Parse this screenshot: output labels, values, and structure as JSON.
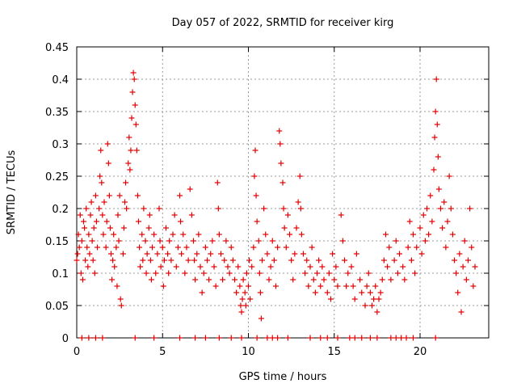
{
  "chart_data": {
    "type": "scatter",
    "title": "Day 057 of 2022, SRMTID for receiver kirg",
    "xlabel": "GPS time / hours",
    "ylabel": "SRMTID / TECUs",
    "xlim": [
      0,
      24
    ],
    "ylim": [
      0,
      0.45
    ],
    "x_ticks": [
      0,
      5,
      10,
      15,
      20
    ],
    "x_tick_labels": [
      "0",
      "5",
      "10",
      "15",
      "20"
    ],
    "y_ticks": [
      0,
      0.05,
      0.1,
      0.15,
      0.2,
      0.25,
      0.3,
      0.35,
      0.4,
      0.45
    ],
    "y_tick_labels": [
      "0",
      "0.05",
      "0.1",
      "0.15",
      "0.2",
      "0.25",
      "0.3",
      "0.35",
      "0.4",
      "0.45"
    ],
    "grid": true,
    "marker": "+",
    "color": "#e00000",
    "series": [
      {
        "name": "SRMTID",
        "points": [
          [
            0.0,
            0.12
          ],
          [
            0.05,
            0.13
          ],
          [
            0.1,
            0.16
          ],
          [
            0.15,
            0.14
          ],
          [
            0.2,
            0.19
          ],
          [
            0.25,
            0.1
          ],
          [
            0.3,
            0.15
          ],
          [
            0.35,
            0.09
          ],
          [
            0.4,
            0.18
          ],
          [
            0.45,
            0.17
          ],
          [
            0.5,
            0.12
          ],
          [
            0.55,
            0.2
          ],
          [
            0.6,
            0.14
          ],
          [
            0.65,
            0.11
          ],
          [
            0.7,
            0.16
          ],
          [
            0.75,
            0.13
          ],
          [
            0.8,
            0.19
          ],
          [
            0.85,
            0.21
          ],
          [
            0.9,
            0.15
          ],
          [
            0.95,
            0.12
          ],
          [
            1.0,
            0.17
          ],
          [
            1.05,
            0.1
          ],
          [
            1.1,
            0.22
          ],
          [
            1.15,
            0.18
          ],
          [
            1.2,
            0.14
          ],
          [
            1.3,
            0.2
          ],
          [
            1.35,
            0.25
          ],
          [
            1.4,
            0.29
          ],
          [
            1.45,
            0.24
          ],
          [
            1.5,
            0.19
          ],
          [
            1.55,
            0.16
          ],
          [
            1.6,
            0.21
          ],
          [
            1.7,
            0.14
          ],
          [
            1.75,
            0.18
          ],
          [
            1.8,
            0.3
          ],
          [
            1.85,
            0.27
          ],
          [
            1.9,
            0.22
          ],
          [
            1.95,
            0.17
          ],
          [
            2.0,
            0.13
          ],
          [
            2.05,
            0.09
          ],
          [
            2.1,
            0.12
          ],
          [
            2.15,
            0.16
          ],
          [
            2.2,
            0.11
          ],
          [
            2.3,
            0.14
          ],
          [
            2.35,
            0.08
          ],
          [
            2.4,
            0.19
          ],
          [
            2.45,
            0.15
          ],
          [
            2.5,
            0.22
          ],
          [
            2.55,
            0.06
          ],
          [
            2.6,
            0.05
          ],
          [
            2.7,
            0.13
          ],
          [
            2.75,
            0.17
          ],
          [
            2.8,
            0.21
          ],
          [
            2.85,
            0.24
          ],
          [
            2.9,
            0.2
          ],
          [
            3.0,
            0.27
          ],
          [
            3.05,
            0.31
          ],
          [
            3.1,
            0.26
          ],
          [
            3.15,
            0.29
          ],
          [
            3.2,
            0.34
          ],
          [
            3.25,
            0.38
          ],
          [
            3.3,
            0.41
          ],
          [
            3.35,
            0.4
          ],
          [
            3.4,
            0.36
          ],
          [
            3.45,
            0.33
          ],
          [
            3.5,
            0.29
          ],
          [
            3.55,
            0.22
          ],
          [
            3.6,
            0.18
          ],
          [
            3.65,
            0.14
          ],
          [
            3.7,
            0.11
          ],
          [
            3.8,
            0.16
          ],
          [
            3.85,
            0.12
          ],
          [
            3.9,
            0.2
          ],
          [
            4.0,
            0.15
          ],
          [
            4.05,
            0.1
          ],
          [
            4.1,
            0.13
          ],
          [
            4.2,
            0.17
          ],
          [
            4.25,
            0.19
          ],
          [
            4.3,
            0.12
          ],
          [
            4.35,
            0.09
          ],
          [
            4.4,
            0.14
          ],
          [
            4.5,
            0.16
          ],
          [
            4.6,
            0.1
          ],
          [
            4.7,
            0.13
          ],
          [
            4.8,
            0.2
          ],
          [
            4.85,
            0.15
          ],
          [
            4.9,
            0.11
          ],
          [
            5.0,
            0.14
          ],
          [
            5.05,
            0.08
          ],
          [
            5.1,
            0.12
          ],
          [
            5.2,
            0.17
          ],
          [
            5.3,
            0.13
          ],
          [
            5.35,
            0.1
          ],
          [
            5.4,
            0.15
          ],
          [
            5.5,
            0.12
          ],
          [
            5.6,
            0.16
          ],
          [
            5.7,
            0.19
          ],
          [
            5.8,
            0.11
          ],
          [
            5.9,
            0.14
          ],
          [
            6.0,
            0.22
          ],
          [
            6.05,
            0.18
          ],
          [
            6.1,
            0.13
          ],
          [
            6.2,
            0.16
          ],
          [
            6.3,
            0.1
          ],
          [
            6.4,
            0.14
          ],
          [
            6.5,
            0.12
          ],
          [
            6.6,
            0.23
          ],
          [
            6.7,
            0.19
          ],
          [
            6.8,
            0.15
          ],
          [
            6.85,
            0.12
          ],
          [
            6.9,
            0.09
          ],
          [
            7.0,
            0.13
          ],
          [
            7.1,
            0.16
          ],
          [
            7.2,
            0.11
          ],
          [
            7.3,
            0.07
          ],
          [
            7.4,
            0.1
          ],
          [
            7.5,
            0.14
          ],
          [
            7.6,
            0.12
          ],
          [
            7.7,
            0.09
          ],
          [
            7.8,
            0.13
          ],
          [
            7.9,
            0.15
          ],
          [
            8.0,
            0.11
          ],
          [
            8.1,
            0.08
          ],
          [
            8.2,
            0.24
          ],
          [
            8.25,
            0.2
          ],
          [
            8.3,
            0.16
          ],
          [
            8.4,
            0.13
          ],
          [
            8.5,
            0.09
          ],
          [
            8.6,
            0.12
          ],
          [
            8.7,
            0.15
          ],
          [
            8.8,
            0.11
          ],
          [
            8.9,
            0.1
          ],
          [
            9.0,
            0.14
          ],
          [
            9.1,
            0.12
          ],
          [
            9.2,
            0.09
          ],
          [
            9.3,
            0.07
          ],
          [
            9.4,
            0.11
          ],
          [
            9.5,
            0.08
          ],
          [
            9.55,
            0.05
          ],
          [
            9.6,
            0.04
          ],
          [
            9.65,
            0.06
          ],
          [
            9.7,
            0.09
          ],
          [
            9.8,
            0.07
          ],
          [
            9.85,
            0.05
          ],
          [
            9.9,
            0.1
          ],
          [
            10.0,
            0.08
          ],
          [
            10.05,
            0.12
          ],
          [
            10.1,
            0.06
          ],
          [
            10.2,
            0.11
          ],
          [
            10.3,
            0.14
          ],
          [
            10.35,
            0.25
          ],
          [
            10.4,
            0.29
          ],
          [
            10.45,
            0.22
          ],
          [
            10.5,
            0.18
          ],
          [
            10.6,
            0.15
          ],
          [
            10.65,
            0.1
          ],
          [
            10.7,
            0.07
          ],
          [
            10.75,
            0.03
          ],
          [
            10.8,
            0.12
          ],
          [
            10.9,
            0.2
          ],
          [
            11.0,
            0.16
          ],
          [
            11.1,
            0.13
          ],
          [
            11.2,
            0.09
          ],
          [
            11.3,
            0.11
          ],
          [
            11.4,
            0.15
          ],
          [
            11.5,
            0.12
          ],
          [
            11.6,
            0.08
          ],
          [
            11.7,
            0.14
          ],
          [
            11.8,
            0.32
          ],
          [
            11.85,
            0.3
          ],
          [
            11.9,
            0.27
          ],
          [
            12.0,
            0.24
          ],
          [
            12.05,
            0.2
          ],
          [
            12.1,
            0.17
          ],
          [
            12.2,
            0.14
          ],
          [
            12.3,
            0.19
          ],
          [
            12.4,
            0.16
          ],
          [
            12.5,
            0.12
          ],
          [
            12.6,
            0.09
          ],
          [
            12.7,
            0.13
          ],
          [
            12.8,
            0.17
          ],
          [
            12.9,
            0.21
          ],
          [
            13.0,
            0.25
          ],
          [
            13.05,
            0.2
          ],
          [
            13.1,
            0.16
          ],
          [
            13.2,
            0.13
          ],
          [
            13.3,
            0.1
          ],
          [
            13.4,
            0.12
          ],
          [
            13.5,
            0.08
          ],
          [
            13.6,
            0.11
          ],
          [
            13.7,
            0.14
          ],
          [
            13.8,
            0.09
          ],
          [
            13.9,
            0.07
          ],
          [
            14.0,
            0.1
          ],
          [
            14.1,
            0.12
          ],
          [
            14.2,
            0.08
          ],
          [
            14.3,
            0.11
          ],
          [
            14.4,
            0.09
          ],
          [
            14.6,
            0.07
          ],
          [
            14.7,
            0.1
          ],
          [
            14.8,
            0.06
          ],
          [
            14.9,
            0.13
          ],
          [
            15.0,
            0.09
          ],
          [
            15.1,
            0.11
          ],
          [
            15.2,
            0.08
          ],
          [
            15.4,
            0.19
          ],
          [
            15.5,
            0.15
          ],
          [
            15.6,
            0.12
          ],
          [
            15.7,
            0.08
          ],
          [
            15.8,
            0.1
          ],
          [
            16.0,
            0.11
          ],
          [
            16.1,
            0.08
          ],
          [
            16.2,
            0.06
          ],
          [
            16.3,
            0.13
          ],
          [
            16.5,
            0.09
          ],
          [
            16.6,
            0.07
          ],
          [
            16.8,
            0.05
          ],
          [
            16.9,
            0.08
          ],
          [
            17.0,
            0.1
          ],
          [
            17.1,
            0.07
          ],
          [
            17.2,
            0.05
          ],
          [
            17.3,
            0.06
          ],
          [
            17.4,
            0.08
          ],
          [
            17.5,
            0.04
          ],
          [
            17.6,
            0.06
          ],
          [
            17.7,
            0.07
          ],
          [
            17.8,
            0.09
          ],
          [
            17.9,
            0.12
          ],
          [
            18.0,
            0.16
          ],
          [
            18.1,
            0.11
          ],
          [
            18.2,
            0.14
          ],
          [
            18.3,
            0.09
          ],
          [
            18.5,
            0.12
          ],
          [
            18.6,
            0.15
          ],
          [
            18.7,
            0.1
          ],
          [
            18.8,
            0.13
          ],
          [
            19.0,
            0.11
          ],
          [
            19.1,
            0.09
          ],
          [
            19.3,
            0.14
          ],
          [
            19.4,
            0.18
          ],
          [
            19.5,
            0.12
          ],
          [
            19.6,
            0.16
          ],
          [
            19.7,
            0.1
          ],
          [
            19.8,
            0.14
          ],
          [
            20.0,
            0.17
          ],
          [
            20.1,
            0.13
          ],
          [
            20.2,
            0.19
          ],
          [
            20.3,
            0.15
          ],
          [
            20.4,
            0.2
          ],
          [
            20.5,
            0.16
          ],
          [
            20.6,
            0.22
          ],
          [
            20.7,
            0.18
          ],
          [
            20.8,
            0.26
          ],
          [
            20.85,
            0.31
          ],
          [
            20.9,
            0.35
          ],
          [
            20.95,
            0.4
          ],
          [
            21.0,
            0.33
          ],
          [
            21.05,
            0.28
          ],
          [
            21.1,
            0.23
          ],
          [
            21.2,
            0.2
          ],
          [
            21.3,
            0.17
          ],
          [
            21.4,
            0.21
          ],
          [
            21.5,
            0.14
          ],
          [
            21.6,
            0.18
          ],
          [
            21.7,
            0.25
          ],
          [
            21.8,
            0.2
          ],
          [
            21.9,
            0.16
          ],
          [
            22.0,
            0.12
          ],
          [
            22.1,
            0.1
          ],
          [
            22.2,
            0.07
          ],
          [
            22.3,
            0.13
          ],
          [
            22.4,
            0.04
          ],
          [
            22.5,
            0.11
          ],
          [
            22.6,
            0.15
          ],
          [
            22.7,
            0.09
          ],
          [
            22.8,
            0.12
          ],
          [
            22.9,
            0.2
          ],
          [
            23.0,
            0.14
          ],
          [
            23.1,
            0.08
          ],
          [
            23.2,
            0.11
          ],
          [
            0.3,
            0.0
          ],
          [
            0.7,
            0.0
          ],
          [
            1.1,
            0.0
          ],
          [
            1.5,
            0.0
          ],
          [
            3.4,
            0.0
          ],
          [
            4.5,
            0.0
          ],
          [
            6.0,
            0.0
          ],
          [
            6.9,
            0.0
          ],
          [
            7.5,
            0.0
          ],
          [
            8.3,
            0.0
          ],
          [
            9.0,
            0.0
          ],
          [
            9.6,
            0.0
          ],
          [
            10.5,
            0.0
          ],
          [
            11.1,
            0.0
          ],
          [
            11.4,
            0.0
          ],
          [
            11.7,
            0.0
          ],
          [
            12.3,
            0.0
          ],
          [
            13.6,
            0.0
          ],
          [
            14.2,
            0.0
          ],
          [
            14.6,
            0.0
          ],
          [
            15.2,
            0.0
          ],
          [
            15.9,
            0.0
          ],
          [
            16.2,
            0.0
          ],
          [
            16.6,
            0.0
          ],
          [
            17.1,
            0.0
          ],
          [
            17.5,
            0.0
          ],
          [
            18.3,
            0.0
          ],
          [
            18.6,
            0.0
          ],
          [
            18.9,
            0.0
          ],
          [
            19.2,
            0.0
          ],
          [
            19.6,
            0.0
          ],
          [
            20.9,
            0.0
          ]
        ]
      }
    ]
  }
}
